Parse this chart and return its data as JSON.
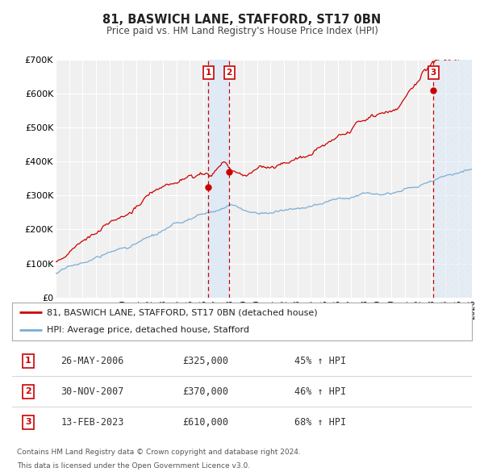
{
  "title": "81, BASWICH LANE, STAFFORD, ST17 0BN",
  "subtitle": "Price paid vs. HM Land Registry's House Price Index (HPI)",
  "xlim": [
    1995,
    2026
  ],
  "ylim": [
    0,
    700000
  ],
  "yticks": [
    0,
    100000,
    200000,
    300000,
    400000,
    500000,
    600000,
    700000
  ],
  "ytick_labels": [
    "£0",
    "£100K",
    "£200K",
    "£300K",
    "£400K",
    "£500K",
    "£600K",
    "£700K"
  ],
  "price_color": "#cc0000",
  "hpi_color": "#7aaed6",
  "vline_color": "#cc0000",
  "shade_color": "#ddeaf7",
  "hatch_color": "#ddeaf7",
  "bg_color": "#f0f0f0",
  "grid_color": "#ffffff",
  "transactions": [
    {
      "id": 1,
      "date_num": 2006.38,
      "price": 325000,
      "date_str": "26-MAY-2006",
      "pct": "45%"
    },
    {
      "id": 2,
      "date_num": 2007.92,
      "price": 370000,
      "date_str": "30-NOV-2007",
      "pct": "46%"
    },
    {
      "id": 3,
      "date_num": 2023.12,
      "price": 610000,
      "date_str": "13-FEB-2023",
      "pct": "68%"
    }
  ],
  "legend_label_red": "81, BASWICH LANE, STAFFORD, ST17 0BN (detached house)",
  "legend_label_blue": "HPI: Average price, detached house, Stafford",
  "footer1": "Contains HM Land Registry data © Crown copyright and database right 2024.",
  "footer2": "This data is licensed under the Open Government Licence v3.0.",
  "table_rows": [
    {
      "id": 1,
      "date": "26-MAY-2006",
      "price": "£325,000",
      "pct": "45% ↑ HPI"
    },
    {
      "id": 2,
      "date": "30-NOV-2007",
      "price": "£370,000",
      "pct": "46% ↑ HPI"
    },
    {
      "id": 3,
      "date": "13-FEB-2023",
      "price": "£610,000",
      "pct": "68% ↑ HPI"
    }
  ]
}
